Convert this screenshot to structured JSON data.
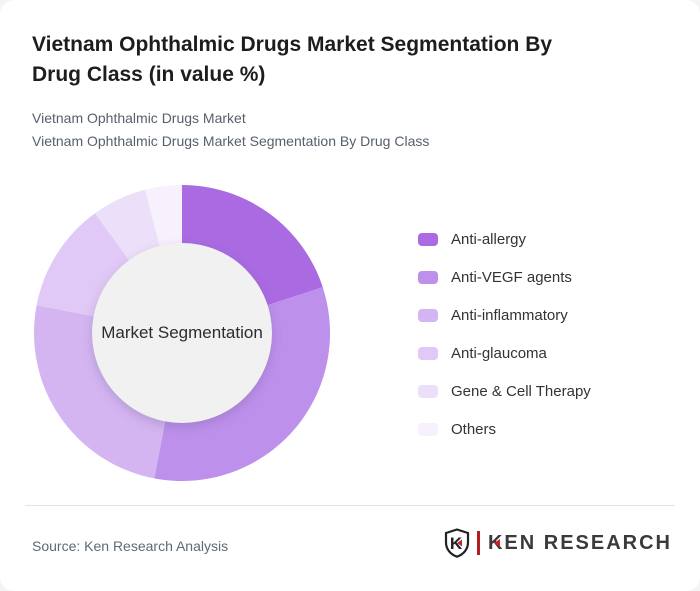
{
  "header": {
    "title": "Vietnam Ophthalmic Drugs Market Segmentation By Drug Class (in value %)",
    "subtitle_line1": "Vietnam Ophthalmic Drugs Market",
    "subtitle_line2": "Vietnam Ophthalmic Drugs Market Segmentation By Drug Class"
  },
  "chart_data": {
    "type": "pie",
    "subtype": "donut",
    "title": "Vietnam Ophthalmic Drugs Market Segmentation By Drug Class (in value %)",
    "unit": "value %",
    "center_label": "Market Segmentation",
    "categories": [
      "Anti-allergy",
      "Anti-VEGF agents",
      "Anti-inflammatory",
      "Anti-glaucoma",
      "Gene & Cell Therapy",
      "Others"
    ],
    "values": [
      20,
      33,
      25,
      12,
      6,
      4
    ],
    "colors": [
      "#aa6ae2",
      "#bd90ec",
      "#d4b5f2",
      "#e0c9f6",
      "#ecdff9",
      "#f7f0fd"
    ],
    "start_angle_deg": 0,
    "direction": "clockwise",
    "legend_position": "right",
    "data_labels_shown": false,
    "hole_color": "#f1f1f1"
  },
  "footer": {
    "source": "Source: Ken Research Analysis",
    "logo": {
      "brand_text": "KEN RESEARCH",
      "mark_letter": "K",
      "brand_red": "#c9232a",
      "text_color": "#3a3a3a"
    }
  }
}
